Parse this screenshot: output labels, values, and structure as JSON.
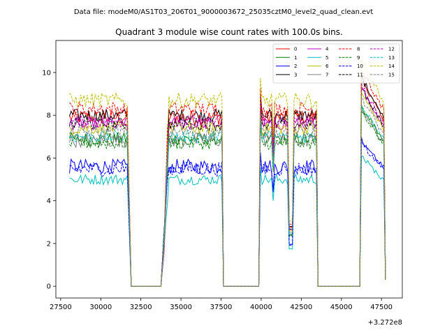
{
  "chart_data": {
    "type": "line",
    "suptitle": "Data file: modeM0/AS1T03_206T01_9000003672_25035cztM0_level2_quad_clean.evt",
    "title": "Quadrant 3 module wise count rates with 100.0s bins.",
    "xlabel": "",
    "ylabel": "",
    "x_offset_label": "+3.272e8",
    "xlim": [
      27200,
      48800
    ],
    "ylim": [
      -0.55,
      11.5
    ],
    "xticks": [
      27500,
      30000,
      32500,
      35000,
      37500,
      40000,
      42500,
      45000,
      47500
    ],
    "yticks": [
      0,
      2,
      4,
      6,
      8,
      10
    ],
    "legend_position": "top-right",
    "segments": [
      {
        "start": 28050,
        "end": 31650
      },
      {
        "start": 33950,
        "end": 37550
      },
      {
        "start": 39950,
        "end": 43450
      },
      {
        "start": 46250,
        "end": 47750
      }
    ],
    "gaps": [
      {
        "start": 31650,
        "end": 33950,
        "low_start": 31900,
        "low_end": 33750
      },
      {
        "start": 37550,
        "end": 39950,
        "low_start": 37650,
        "low_end": 39850
      },
      {
        "start": 43450,
        "end": 46250,
        "low_start": 43550,
        "low_end": 46150
      }
    ],
    "series": [
      {
        "name": "0",
        "color": "#ff0000",
        "dash": "solid",
        "level": 7.9,
        "noise": 0.35
      },
      {
        "name": "1",
        "color": "#008000",
        "dash": "solid",
        "level": 6.9,
        "noise": 0.3
      },
      {
        "name": "2",
        "color": "#0000ff",
        "dash": "solid",
        "level": 5.6,
        "noise": 0.35
      },
      {
        "name": "3",
        "color": "#000000",
        "dash": "solid",
        "level": 8.0,
        "noise": 0.3
      },
      {
        "name": "4",
        "color": "#bf00bf",
        "dash": "solid",
        "level": 7.6,
        "noise": 0.3
      },
      {
        "name": "5",
        "color": "#00bfbf",
        "dash": "solid",
        "level": 5.0,
        "noise": 0.25
      },
      {
        "name": "6",
        "color": "#bfbf00",
        "dash": "solid",
        "level": 7.4,
        "noise": 0.3
      },
      {
        "name": "7",
        "color": "#808080",
        "dash": "solid",
        "level": 6.8,
        "noise": 0.3
      },
      {
        "name": "8",
        "color": "#ff0000",
        "dash": "dashed",
        "level": 8.3,
        "noise": 0.35
      },
      {
        "name": "9",
        "color": "#008000",
        "dash": "dashed",
        "level": 6.7,
        "noise": 0.3
      },
      {
        "name": "10",
        "color": "#0000ff",
        "dash": "dashed",
        "level": 5.5,
        "noise": 0.35
      },
      {
        "name": "11",
        "color": "#000000",
        "dash": "dashed",
        "level": 7.6,
        "noise": 0.3
      },
      {
        "name": "12",
        "color": "#bf00bf",
        "dash": "dashed",
        "level": 7.7,
        "noise": 0.3
      },
      {
        "name": "13",
        "color": "#00bfbf",
        "dash": "dashed",
        "level": 7.0,
        "noise": 0.3
      },
      {
        "name": "14",
        "color": "#bfbf00",
        "dash": "dashed",
        "level": 8.7,
        "noise": 0.35
      },
      {
        "name": "15",
        "color": "#808080",
        "dash": "dashed",
        "level": 7.2,
        "noise": 0.3
      }
    ]
  }
}
